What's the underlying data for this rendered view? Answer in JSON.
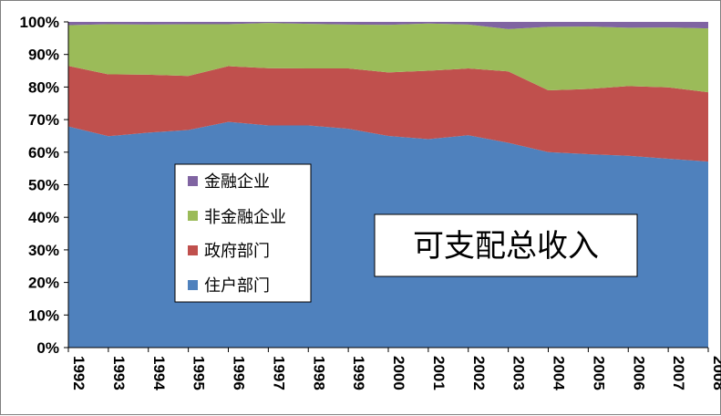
{
  "chart_data": {
    "type": "area",
    "stacked": true,
    "percent": true,
    "title": "",
    "xlabel": "",
    "ylabel": "",
    "ylim": [
      0,
      100
    ],
    "y_ticks": [
      "0%",
      "10%",
      "20%",
      "30%",
      "40%",
      "50%",
      "60%",
      "70%",
      "80%",
      "90%",
      "100%"
    ],
    "x": [
      "1992",
      "1993",
      "1994",
      "1995",
      "1996",
      "1997",
      "1998",
      "1999",
      "2000",
      "2001",
      "2002",
      "2003",
      "2004",
      "2005",
      "2006",
      "2007",
      "2008"
    ],
    "series": [
      {
        "name": "住户部门",
        "color": "#4f81bd",
        "values": [
          67.9,
          64.9,
          66.0,
          66.8,
          69.3,
          68.2,
          68.2,
          67.2,
          65.0,
          64.0,
          65.2,
          62.9,
          60.0,
          59.4,
          58.9,
          58.0,
          57.1
        ]
      },
      {
        "name": "政府部门",
        "color": "#c0504d",
        "values": [
          18.6,
          19.0,
          17.8,
          16.6,
          17.1,
          17.6,
          17.5,
          18.5,
          19.5,
          21.0,
          20.5,
          21.9,
          19.0,
          20.0,
          21.4,
          21.9,
          21.3
        ]
      },
      {
        "name": "非金融企业",
        "color": "#9bbb59",
        "values": [
          12.5,
          15.4,
          15.4,
          15.9,
          12.9,
          13.9,
          13.7,
          13.5,
          14.6,
          14.5,
          13.5,
          13.0,
          19.5,
          19.2,
          17.9,
          18.4,
          19.6
        ]
      },
      {
        "name": "金融企业",
        "color": "#8064a2",
        "values": [
          1.0,
          0.7,
          0.8,
          0.7,
          0.7,
          0.3,
          0.6,
          0.8,
          0.9,
          0.5,
          0.8,
          2.2,
          1.5,
          1.4,
          1.8,
          1.7,
          2.0
        ]
      }
    ],
    "legend": {
      "placement": "center-left",
      "order": [
        "金融企业",
        "非金融企业",
        "政府部门",
        "住户部门"
      ]
    },
    "annotation": "可支配总收入",
    "grid": false
  }
}
